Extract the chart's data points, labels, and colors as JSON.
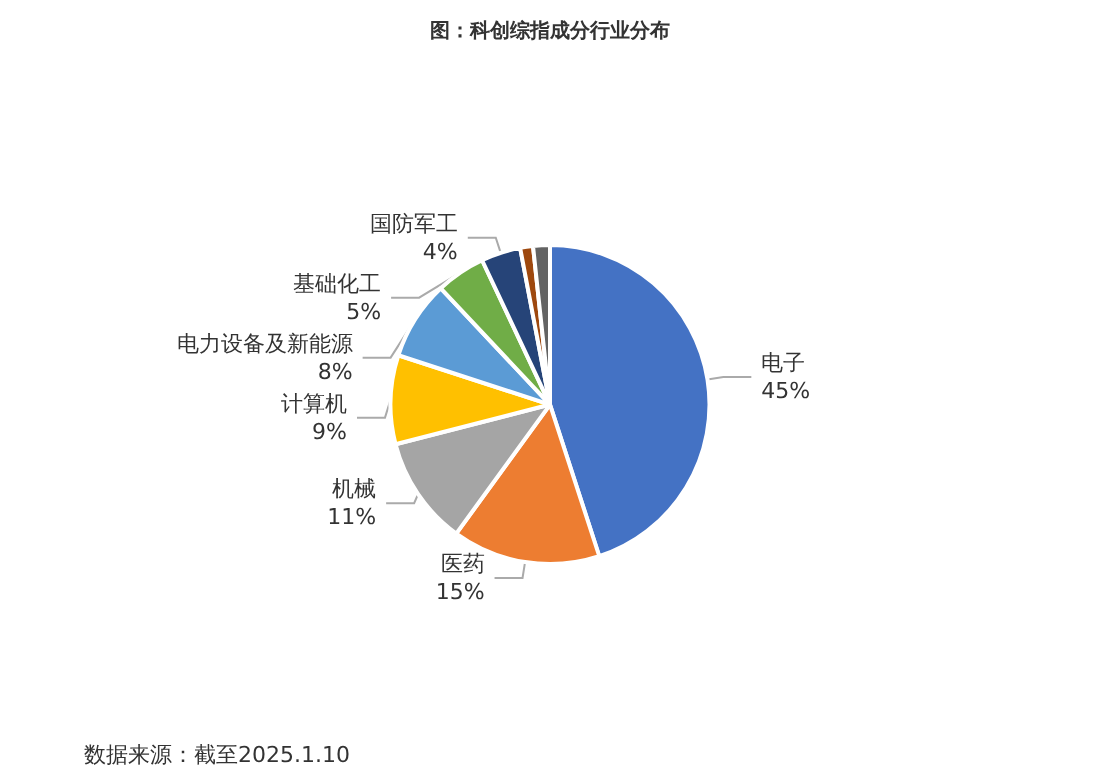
{
  "chart_data": {
    "type": "pie",
    "title": "图：科创综指成分行业分布",
    "categories": [
      "电子",
      "医药",
      "机械",
      "计算机",
      "电力设备及新能源",
      "基础化工",
      "国防军工",
      null,
      null
    ],
    "values": [
      45,
      15,
      11,
      9,
      8,
      5,
      4,
      1.3,
      1.7
    ],
    "colors": [
      "#4472c4",
      "#ed7d31",
      "#a5a5a5",
      "#ffc000",
      "#5b9bd5",
      "#70ad47",
      "#264478",
      "#9e480e",
      "#636363"
    ],
    "value_labels": [
      "45%",
      "15%",
      "11%",
      "9%",
      "8%",
      "5%",
      "4%",
      null,
      null
    ],
    "annotations": [
      "数据来源：截至2025.1.10"
    ],
    "legend": false
  }
}
